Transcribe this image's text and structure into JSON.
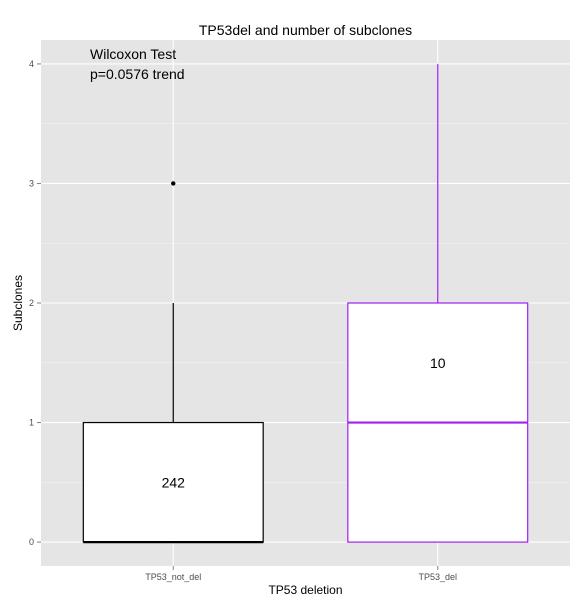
{
  "chart_data": {
    "type": "box",
    "title": "TP53del and number of subclones",
    "xlabel": "TP53 deletion",
    "ylabel": "Subclones",
    "ylim": [
      -0.2,
      4.2
    ],
    "y_ticks": [
      0,
      1,
      2,
      3,
      4
    ],
    "grid": true,
    "categories": [
      "TP53_not_del",
      "TP53_del"
    ],
    "boxes": [
      {
        "category": "TP53_not_del",
        "min": 0,
        "q1": 0,
        "median": 0,
        "q3": 1,
        "max": 2,
        "outliers": [
          3
        ],
        "count_label": "242",
        "color": "#000000"
      },
      {
        "category": "TP53_del",
        "min": 0,
        "q1": 0,
        "median": 1,
        "q3": 2,
        "max": 4,
        "outliers": [],
        "count_label": "10",
        "color": "#a020f0"
      }
    ],
    "annotations": [
      "Wilcoxon Test",
      "p=0.0576 trend"
    ]
  },
  "colors": {
    "panel_background": "#e5e5e5",
    "grid": "#ffffff",
    "box_fill": "#ffffff"
  }
}
